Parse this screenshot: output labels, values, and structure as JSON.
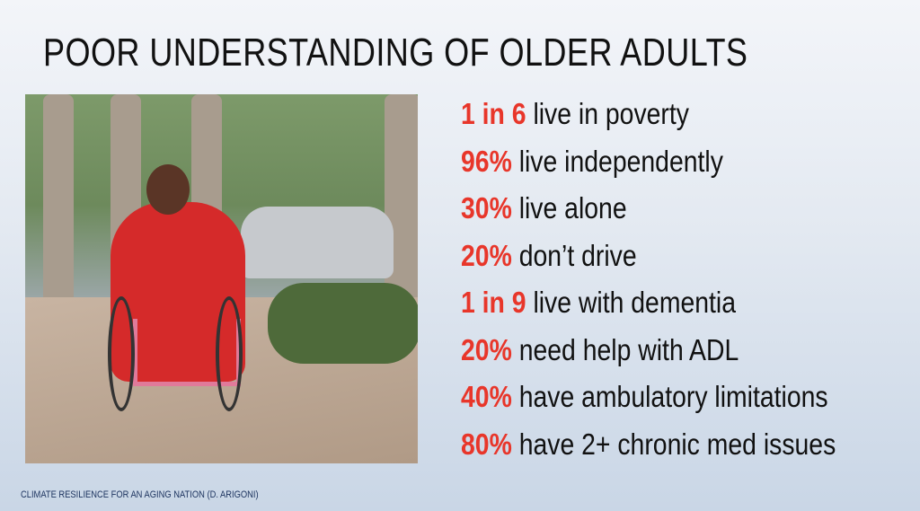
{
  "title": "POOR UNDERSTANDING OF OLDER ADULTS",
  "photo": {
    "alt": "Smiling woman in red jacket using a pink wheelchair on a sidewalk"
  },
  "stats": [
    {
      "num": "1 in 6",
      "text": "live in poverty"
    },
    {
      "num": "96%",
      "text": "live independently"
    },
    {
      "num": "30%",
      "text": "live alone"
    },
    {
      "num": "20%",
      "text": "don’t drive"
    },
    {
      "num": "1 in 9",
      "text": "live with dementia"
    },
    {
      "num": "20%",
      "text": "need help with ADL"
    },
    {
      "num": "40%",
      "text": "have ambulatory limitations"
    },
    {
      "num": "80%",
      "text": "have 2+ chronic med issues"
    }
  ],
  "footer": "CLIMATE RESILIENCE FOR AN AGING NATION (D. ARIGONI)",
  "colors": {
    "accent": "#e8362a",
    "text": "#111111",
    "footer": "#1e3560"
  }
}
